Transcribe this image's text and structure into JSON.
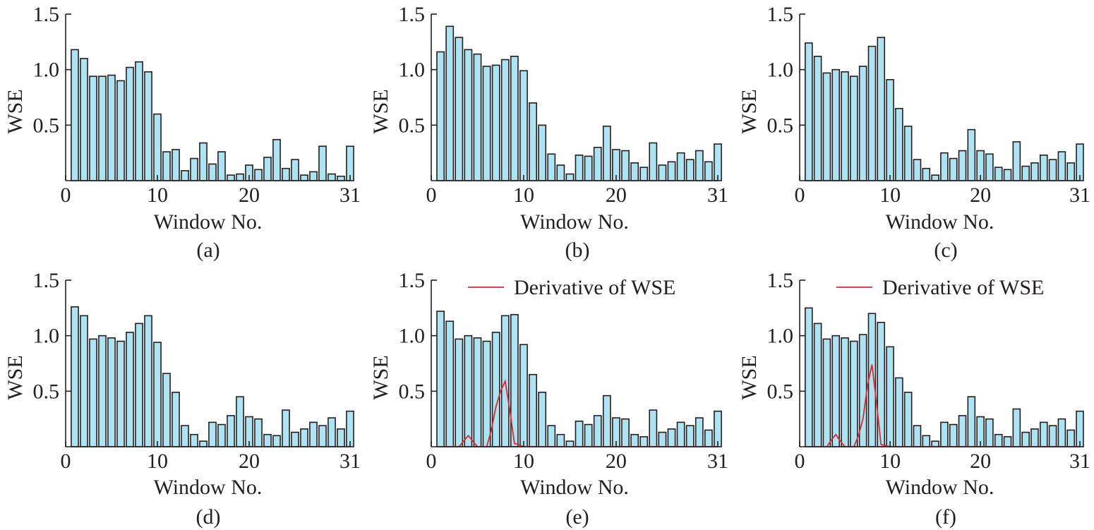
{
  "colors": {
    "bar_fill": "#aee3f4",
    "bar_stroke": "#231f20",
    "axis": "#231f20",
    "derivative_line": "#d62b33"
  },
  "chart_data": [
    {
      "type": "bar",
      "panel_label": "(a)",
      "xlabel": "Window No.",
      "ylabel": "WSE",
      "xlim": [
        0,
        31
      ],
      "ylim": [
        0,
        1.5
      ],
      "xticks": [
        0,
        10,
        20,
        31
      ],
      "yticks": [
        0.5,
        1.0,
        1.5
      ],
      "ytick_labels": [
        "0.5",
        "1.0",
        "1.5"
      ],
      "grid": false,
      "x": [
        1,
        2,
        3,
        4,
        5,
        6,
        7,
        8,
        9,
        10,
        11,
        12,
        13,
        14,
        15,
        16,
        17,
        18,
        19,
        20,
        21,
        22,
        23,
        24,
        25,
        26,
        27,
        28,
        29,
        30,
        31
      ],
      "values": [
        1.18,
        1.1,
        0.94,
        0.94,
        0.95,
        0.9,
        1.02,
        1.07,
        0.98,
        0.6,
        0.26,
        0.28,
        0.09,
        0.2,
        0.34,
        0.15,
        0.26,
        0.05,
        0.06,
        0.14,
        0.1,
        0.21,
        0.37,
        0.11,
        0.19,
        0.05,
        0.08,
        0.31,
        0.06,
        0.04,
        0.31
      ]
    },
    {
      "type": "bar",
      "panel_label": "(b)",
      "xlabel": "Window No.",
      "ylabel": "WSE",
      "xlim": [
        0,
        31
      ],
      "ylim": [
        0,
        1.5
      ],
      "xticks": [
        0,
        10,
        20,
        31
      ],
      "yticks": [
        0.5,
        1.0,
        1.5
      ],
      "ytick_labels": [
        "0.5",
        "1.0",
        "1.5"
      ],
      "grid": false,
      "x": [
        1,
        2,
        3,
        4,
        5,
        6,
        7,
        8,
        9,
        10,
        11,
        12,
        13,
        14,
        15,
        16,
        17,
        18,
        19,
        20,
        21,
        22,
        23,
        24,
        25,
        26,
        27,
        28,
        29,
        30,
        31
      ],
      "values": [
        1.16,
        1.39,
        1.29,
        1.18,
        1.14,
        1.03,
        1.04,
        1.09,
        1.12,
        0.99,
        0.7,
        0.5,
        0.24,
        0.14,
        0.06,
        0.23,
        0.22,
        0.3,
        0.49,
        0.28,
        0.27,
        0.16,
        0.12,
        0.34,
        0.14,
        0.17,
        0.25,
        0.19,
        0.27,
        0.17,
        0.33
      ]
    },
    {
      "type": "bar",
      "panel_label": "(c)",
      "xlabel": "Window No.",
      "ylabel": "WSE",
      "xlim": [
        0,
        31
      ],
      "ylim": [
        0,
        1.5
      ],
      "xticks": [
        0,
        10,
        20,
        31
      ],
      "yticks": [
        0.5,
        1.0,
        1.5
      ],
      "ytick_labels": [
        "0.5",
        "1.0",
        "1.5"
      ],
      "grid": false,
      "x": [
        1,
        2,
        3,
        4,
        5,
        6,
        7,
        8,
        9,
        10,
        11,
        12,
        13,
        14,
        15,
        16,
        17,
        18,
        19,
        20,
        21,
        22,
        23,
        24,
        25,
        26,
        27,
        28,
        29,
        30,
        31
      ],
      "values": [
        1.24,
        1.12,
        0.97,
        1.0,
        0.98,
        0.94,
        1.03,
        1.21,
        1.29,
        0.91,
        0.65,
        0.49,
        0.19,
        0.11,
        0.05,
        0.25,
        0.2,
        0.27,
        0.46,
        0.27,
        0.24,
        0.12,
        0.1,
        0.35,
        0.13,
        0.16,
        0.23,
        0.19,
        0.26,
        0.16,
        0.33
      ]
    },
    {
      "type": "bar",
      "panel_label": "(d)",
      "xlabel": "Window No.",
      "ylabel": "WSE",
      "xlim": [
        0,
        31
      ],
      "ylim": [
        0,
        1.5
      ],
      "xticks": [
        0,
        10,
        20,
        31
      ],
      "yticks": [
        0.5,
        1.0,
        1.5
      ],
      "ytick_labels": [
        "0.5",
        "1.0",
        "1.5"
      ],
      "grid": false,
      "x": [
        1,
        2,
        3,
        4,
        5,
        6,
        7,
        8,
        9,
        10,
        11,
        12,
        13,
        14,
        15,
        16,
        17,
        18,
        19,
        20,
        21,
        22,
        23,
        24,
        25,
        26,
        27,
        28,
        29,
        30,
        31
      ],
      "values": [
        1.26,
        1.18,
        0.97,
        1.0,
        0.98,
        0.95,
        1.03,
        1.11,
        1.18,
        0.94,
        0.66,
        0.49,
        0.19,
        0.11,
        0.05,
        0.22,
        0.2,
        0.28,
        0.45,
        0.27,
        0.25,
        0.11,
        0.1,
        0.33,
        0.13,
        0.16,
        0.22,
        0.19,
        0.26,
        0.16,
        0.32
      ]
    },
    {
      "type": "bar",
      "panel_label": "(e)",
      "xlabel": "Window No.",
      "ylabel": "WSE",
      "xlim": [
        0,
        31
      ],
      "ylim": [
        0,
        1.5
      ],
      "xticks": [
        0,
        10,
        20,
        31
      ],
      "yticks": [
        0.5,
        1.0,
        1.5
      ],
      "ytick_labels": [
        "0.5",
        "1.0",
        "1.5"
      ],
      "grid": false,
      "legend": "top-right",
      "x": [
        1,
        2,
        3,
        4,
        5,
        6,
        7,
        8,
        9,
        10,
        11,
        12,
        13,
        14,
        15,
        16,
        17,
        18,
        19,
        20,
        21,
        22,
        23,
        24,
        25,
        26,
        27,
        28,
        29,
        30,
        31
      ],
      "values": [
        1.22,
        1.13,
        0.97,
        1.0,
        0.98,
        0.95,
        1.03,
        1.18,
        1.19,
        0.92,
        0.65,
        0.49,
        0.19,
        0.11,
        0.05,
        0.23,
        0.2,
        0.28,
        0.46,
        0.26,
        0.25,
        0.11,
        0.09,
        0.33,
        0.13,
        0.16,
        0.22,
        0.19,
        0.26,
        0.15,
        0.32
      ],
      "series": [
        {
          "name": "Derivative of WSE",
          "type": "line",
          "x": [
            1,
            2,
            3,
            3.5,
            4,
            4.5,
            5,
            6,
            6.5,
            7,
            7.5,
            8,
            8.5,
            9,
            10,
            11,
            12,
            13,
            14,
            15,
            16,
            17,
            18,
            19,
            20,
            21,
            22,
            23,
            24,
            25,
            26,
            27,
            28,
            29,
            30,
            31
          ],
          "values": [
            0,
            0,
            0,
            0.05,
            0.1,
            0.05,
            0,
            0,
            0.15,
            0.36,
            0.5,
            0.59,
            0.33,
            0.03,
            0,
            0,
            0,
            0,
            0,
            0,
            0,
            0,
            0,
            0,
            0,
            0,
            0,
            0,
            0,
            0,
            0,
            0,
            0,
            0,
            0,
            0
          ]
        }
      ]
    },
    {
      "type": "bar",
      "panel_label": "(f)",
      "xlabel": "Window No.",
      "ylabel": "WSE",
      "xlim": [
        0,
        31
      ],
      "ylim": [
        0,
        1.5
      ],
      "xticks": [
        0,
        10,
        20,
        31
      ],
      "yticks": [
        0.5,
        1.0,
        1.5
      ],
      "ytick_labels": [
        "0.5",
        "1.0",
        "1.5"
      ],
      "grid": false,
      "legend": "top-right",
      "x": [
        1,
        2,
        3,
        4,
        5,
        6,
        7,
        8,
        9,
        10,
        11,
        12,
        13,
        14,
        15,
        16,
        17,
        18,
        19,
        20,
        21,
        22,
        23,
        24,
        25,
        26,
        27,
        28,
        29,
        30,
        31
      ],
      "values": [
        1.25,
        1.11,
        0.97,
        1.0,
        0.98,
        0.95,
        1.01,
        1.2,
        1.12,
        0.9,
        0.62,
        0.49,
        0.19,
        0.1,
        0.05,
        0.22,
        0.2,
        0.28,
        0.45,
        0.27,
        0.25,
        0.11,
        0.09,
        0.34,
        0.13,
        0.16,
        0.22,
        0.19,
        0.25,
        0.15,
        0.32
      ],
      "series": [
        {
          "name": "Derivative of WSE",
          "type": "line",
          "x": [
            1,
            2,
            3,
            3.5,
            4,
            4.5,
            5,
            6,
            6.5,
            7,
            7.5,
            8,
            8.5,
            9,
            10,
            11,
            12,
            13,
            14,
            15,
            16,
            17,
            18,
            19,
            20,
            21,
            22,
            23,
            24,
            25,
            26,
            27,
            28,
            29,
            30,
            31
          ],
          "values": [
            0,
            0,
            0,
            0.06,
            0.11,
            0.05,
            0,
            0,
            0.1,
            0.25,
            0.55,
            0.74,
            0.4,
            0.02,
            0,
            0,
            0,
            0,
            0,
            0,
            0,
            0,
            0,
            0,
            0,
            0,
            0,
            0,
            0,
            0,
            0,
            0,
            0,
            0,
            0,
            0
          ]
        }
      ]
    }
  ]
}
